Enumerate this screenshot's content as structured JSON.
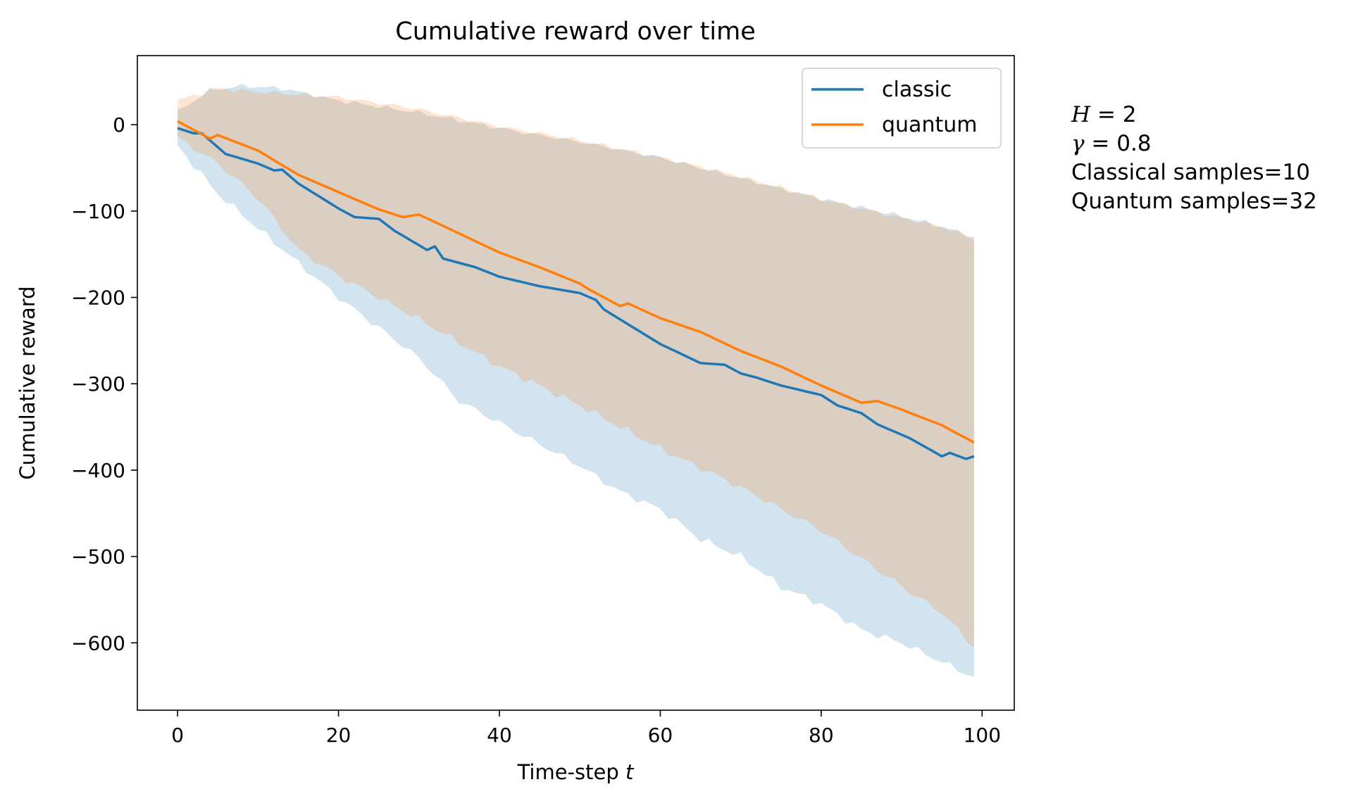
{
  "chart_data": {
    "type": "line",
    "title": "Cumulative reward over time",
    "xlabel": "Time-step ",
    "xlabel_var": "t",
    "ylabel": "Cumulative reward",
    "xlim": [
      -5,
      104
    ],
    "ylim": [
      -678,
      80
    ],
    "x_ticks": [
      0,
      20,
      40,
      60,
      80,
      100
    ],
    "x_tick_labels": [
      "0",
      "20",
      "40",
      "60",
      "80",
      "100"
    ],
    "y_ticks": [
      0,
      -100,
      -200,
      -300,
      -400,
      -500,
      -600
    ],
    "y_tick_labels": [
      "0",
      "−100",
      "−200",
      "−300",
      "−400",
      "−500",
      "−600"
    ],
    "grid": false,
    "legend_position": "top-right",
    "x_start": 0,
    "x_step": 1,
    "series": [
      {
        "name": "classic",
        "color": "#1f77b4",
        "fill_color": "#c7dcec",
        "mean_keypoints": [
          [
            0,
            -4
          ],
          [
            2,
            -10
          ],
          [
            3,
            -10
          ],
          [
            6,
            -34
          ],
          [
            10,
            -45
          ],
          [
            12,
            -53
          ],
          [
            13,
            -52
          ],
          [
            15,
            -68
          ],
          [
            20,
            -97
          ],
          [
            22,
            -107
          ],
          [
            25,
            -109
          ],
          [
            27,
            -123
          ],
          [
            31,
            -145
          ],
          [
            32,
            -141
          ],
          [
            33,
            -155
          ],
          [
            37,
            -165
          ],
          [
            40,
            -176
          ],
          [
            45,
            -187
          ],
          [
            50,
            -195
          ],
          [
            52,
            -203
          ],
          [
            53,
            -214
          ],
          [
            60,
            -254
          ],
          [
            65,
            -276
          ],
          [
            68,
            -278
          ],
          [
            70,
            -288
          ],
          [
            72,
            -293
          ],
          [
            75,
            -302
          ],
          [
            80,
            -313
          ],
          [
            82,
            -325
          ],
          [
            85,
            -334
          ],
          [
            87,
            -347
          ],
          [
            91,
            -363
          ],
          [
            95,
            -384
          ],
          [
            96,
            -380
          ],
          [
            98,
            -387
          ],
          [
            99,
            -384
          ]
        ],
        "upper_keypoints": [
          [
            0,
            15
          ],
          [
            4,
            40
          ],
          [
            8,
            45
          ],
          [
            13,
            42
          ],
          [
            20,
            28
          ],
          [
            30,
            14
          ],
          [
            40,
            -4
          ],
          [
            50,
            -20
          ],
          [
            60,
            -38
          ],
          [
            70,
            -62
          ],
          [
            80,
            -86
          ],
          [
            90,
            -106
          ],
          [
            95,
            -118
          ],
          [
            99,
            -130
          ]
        ],
        "lower_keypoints": [
          [
            0,
            -25
          ],
          [
            5,
            -80
          ],
          [
            10,
            -120
          ],
          [
            15,
            -160
          ],
          [
            20,
            -200
          ],
          [
            30,
            -270
          ],
          [
            35,
            -320
          ],
          [
            40,
            -345
          ],
          [
            45,
            -370
          ],
          [
            50,
            -395
          ],
          [
            55,
            -425
          ],
          [
            60,
            -445
          ],
          [
            65,
            -480
          ],
          [
            70,
            -500
          ],
          [
            75,
            -535
          ],
          [
            80,
            -555
          ],
          [
            85,
            -585
          ],
          [
            90,
            -600
          ],
          [
            95,
            -622
          ],
          [
            99,
            -640
          ]
        ]
      },
      {
        "name": "quantum",
        "color": "#ff7f0e",
        "fill_color": "#fed8b8",
        "mean_keypoints": [
          [
            0,
            4
          ],
          [
            4,
            -16
          ],
          [
            5,
            -12
          ],
          [
            10,
            -30
          ],
          [
            15,
            -58
          ],
          [
            20,
            -78
          ],
          [
            25,
            -98
          ],
          [
            28,
            -107
          ],
          [
            30,
            -104
          ],
          [
            35,
            -126
          ],
          [
            40,
            -148
          ],
          [
            45,
            -165
          ],
          [
            50,
            -184
          ],
          [
            51,
            -190
          ],
          [
            55,
            -210
          ],
          [
            56,
            -207
          ],
          [
            60,
            -224
          ],
          [
            65,
            -240
          ],
          [
            70,
            -262
          ],
          [
            75,
            -280
          ],
          [
            80,
            -302
          ],
          [
            85,
            -322
          ],
          [
            87,
            -320
          ],
          [
            90,
            -330
          ],
          [
            95,
            -348
          ],
          [
            99,
            -368
          ]
        ],
        "upper_keypoints": [
          [
            0,
            28
          ],
          [
            5,
            42
          ],
          [
            10,
            38
          ],
          [
            20,
            32
          ],
          [
            30,
            18
          ],
          [
            40,
            -2
          ],
          [
            50,
            -18
          ],
          [
            60,
            -38
          ],
          [
            70,
            -60
          ],
          [
            80,
            -86
          ],
          [
            90,
            -108
          ],
          [
            95,
            -118
          ],
          [
            99,
            -132
          ]
        ],
        "lower_keypoints": [
          [
            0,
            -15
          ],
          [
            5,
            -45
          ],
          [
            10,
            -85
          ],
          [
            15,
            -145
          ],
          [
            20,
            -175
          ],
          [
            30,
            -225
          ],
          [
            40,
            -280
          ],
          [
            50,
            -325
          ],
          [
            60,
            -375
          ],
          [
            70,
            -420
          ],
          [
            80,
            -470
          ],
          [
            90,
            -535
          ],
          [
            95,
            -565
          ],
          [
            99,
            -605
          ]
        ]
      }
    ],
    "annotations": [
      {
        "var": "H",
        "op": " = ",
        "value": "2"
      },
      {
        "var": "γ",
        "op": " = ",
        "value": "0.8"
      },
      {
        "text": "Classical samples=10"
      },
      {
        "text": "Quantum samples=32"
      }
    ]
  }
}
